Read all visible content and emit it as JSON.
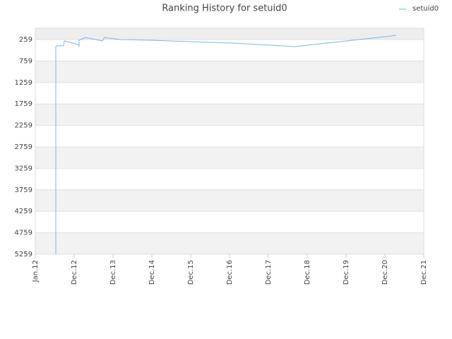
{
  "chart_data": {
    "type": "line",
    "title": "Ranking History for setuid0",
    "xlim": [
      0,
      10
    ],
    "xticks": [
      {
        "value": 0,
        "label": "Jan.12"
      },
      {
        "value": 1,
        "label": "Dec.12"
      },
      {
        "value": 2,
        "label": "Dec.13"
      },
      {
        "value": 3,
        "label": "Dec.14"
      },
      {
        "value": 4,
        "label": "Dec.15"
      },
      {
        "value": 5,
        "label": "Dec.16"
      },
      {
        "value": 6,
        "label": "Dec.17"
      },
      {
        "value": 7,
        "label": "Dec.18"
      },
      {
        "value": 8,
        "label": "Dec.19"
      },
      {
        "value": 9,
        "label": "Dec.20"
      },
      {
        "value": 10,
        "label": "Dec.21"
      }
    ],
    "ylim": [
      5259,
      -4
    ],
    "yticks": [
      259,
      759,
      1259,
      1759,
      2259,
      2759,
      3259,
      3759,
      4259,
      4759,
      5259
    ],
    "legend": "top-right",
    "series": [
      {
        "name": "setuid0",
        "color": "#7cb5ec",
        "x": [
          0.527,
          0.527,
          0.564,
          0.727,
          0.745,
          1.09,
          1.127,
          1.127,
          1.29,
          1.727,
          1.78,
          2.18,
          3.0,
          4.0,
          5.09,
          6.09,
          6.69,
          7.0,
          8.0,
          9.0,
          9.29
        ],
        "values": [
          5259,
          423,
          406,
          406,
          292,
          374,
          406,
          275,
          210,
          292,
          210,
          259,
          275,
          308,
          341,
          391,
          423,
          391,
          292,
          193,
          160
        ]
      }
    ]
  }
}
